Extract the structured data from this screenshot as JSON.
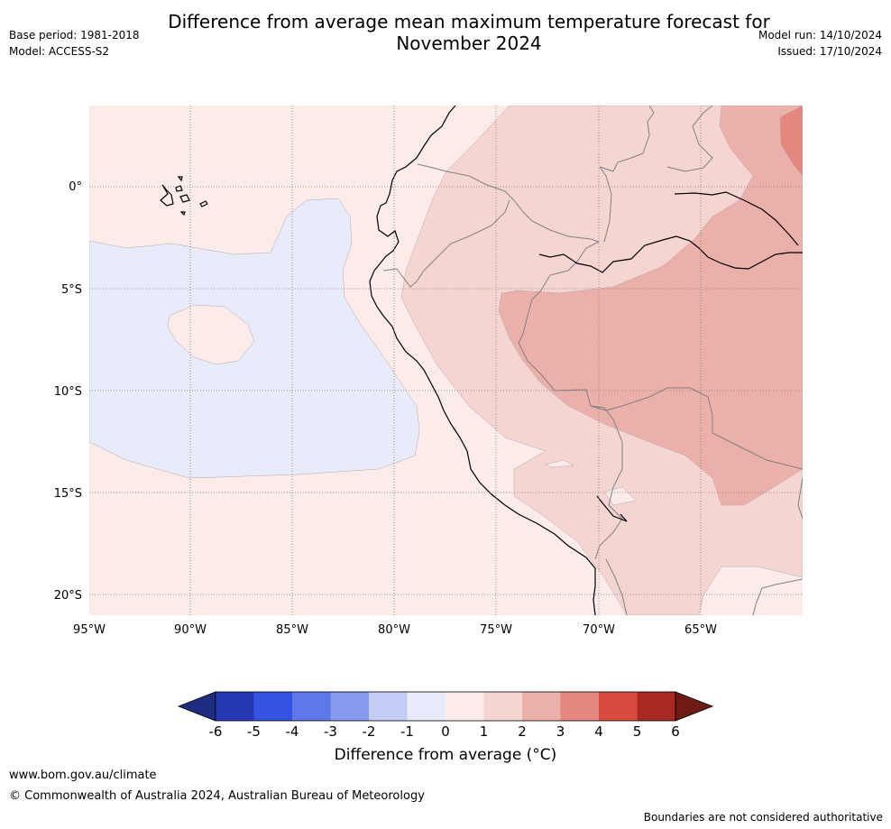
{
  "header": {
    "title_line1": "Difference from average mean maximum temperature forecast for",
    "title_line2": "November 2024",
    "base_period": "Base period: 1981-2018",
    "model": "Model: ACCESS-S2",
    "model_run": "Model run: 14/10/2024",
    "issued": "Issued: 17/10/2024"
  },
  "map": {
    "lat_labels": [
      "0°",
      "5°S",
      "10°S",
      "15°S",
      "20°S"
    ],
    "lon_labels": [
      "95°W",
      "90°W",
      "85°W",
      "80°W",
      "75°W",
      "70°W",
      "65°W"
    ],
    "colors": {
      "sea_neutral": "#fbebe9",
      "minus1_0": "#e8ecfa",
      "plus1_2": "#f5d5d2",
      "plus2_3": "#ecb0ab",
      "plus3_4": "#e5877f",
      "coast": "#000000",
      "border": "#808080",
      "grid": "#808080"
    }
  },
  "colorbar": {
    "ticks": [
      "-6",
      "-5",
      "-4",
      "-3",
      "-2",
      "-1",
      "0",
      "1",
      "2",
      "3",
      "4",
      "5",
      "6"
    ],
    "colors": [
      "#1e2c80",
      "#2539b3",
      "#3553e2",
      "#5d78e8",
      "#8799ec",
      "#c4ccf5",
      "#e8ecfa",
      "#fbebe9",
      "#f5d5d2",
      "#ecb0ab",
      "#e5877f",
      "#d94b3e",
      "#a82a22",
      "#6e1a15"
    ],
    "title": "Difference from average (°C)"
  },
  "footer": {
    "url": "www.bom.gov.au/climate",
    "copyright": "© Commonwealth of Australia 2024, Australian Bureau of Meteorology",
    "disclaimer": "Boundaries are not considered authoritative"
  }
}
